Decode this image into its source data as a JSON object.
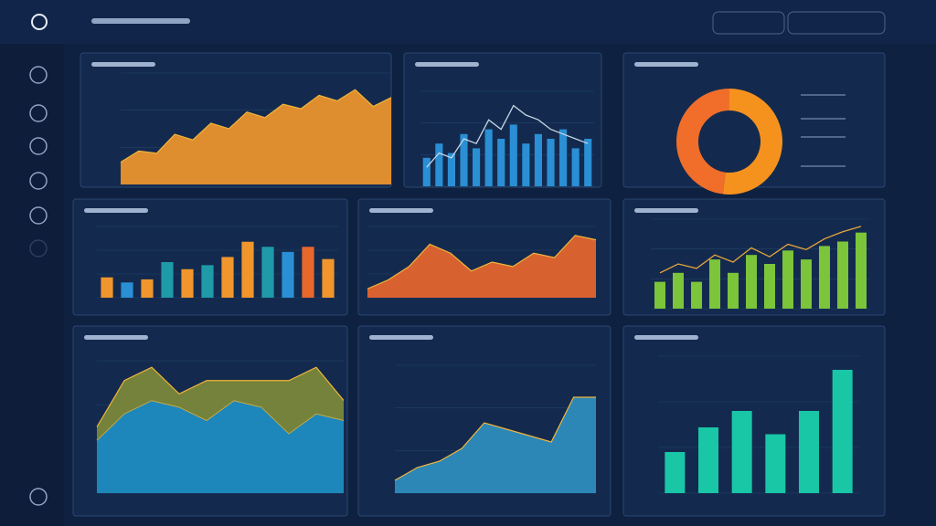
{
  "chart_data": [
    {
      "type": "area",
      "values": [
        20,
        30,
        28,
        45,
        40,
        55,
        50,
        65,
        60,
        72,
        68,
        80,
        75,
        85,
        70,
        78
      ],
      "color": "#f0962c",
      "ylim": [
        0,
        100
      ]
    },
    {
      "type": "bar-line",
      "series": [
        {
          "color": "#2a8fd4",
          "values": [
            30,
            45,
            35,
            55,
            40,
            60,
            50,
            65,
            45,
            55,
            50,
            60,
            40,
            50
          ]
        },
        {
          "color": "#c9d6e6",
          "values": [
            20,
            35,
            30,
            50,
            45,
            70,
            60,
            85,
            75,
            70,
            60,
            55,
            50,
            45
          ]
        }
      ],
      "ylim": [
        0,
        100
      ]
    },
    {
      "type": "donut",
      "values": [
        52,
        48
      ],
      "colors": [
        "#f5921e",
        "#f06e2a"
      ]
    },
    {
      "type": "bar",
      "values": [
        20,
        15,
        18,
        35,
        28,
        32,
        40,
        55,
        50,
        45,
        50,
        38
      ],
      "colors": [
        "#f0962c",
        "#2a8fd4",
        "#f0962c",
        "#1f9aa8",
        "#f0962c",
        "#1f9aa8",
        "#f0962c",
        "#f0962c",
        "#1f9aa8",
        "#2a8fd4",
        "#e8672c",
        "#f0962c"
      ],
      "ylim": [
        0,
        70
      ]
    },
    {
      "type": "area",
      "values": [
        10,
        20,
        35,
        60,
        50,
        30,
        40,
        35,
        50,
        45,
        70,
        65
      ],
      "color": "#e8672c",
      "ylim": [
        0,
        80
      ]
    },
    {
      "type": "bar-line",
      "series": [
        {
          "color": "#7cc43a",
          "values": [
            30,
            40,
            30,
            55,
            40,
            60,
            50,
            65,
            55,
            70,
            75,
            85
          ]
        },
        {
          "color": "#e8a63a",
          "values": [
            40,
            50,
            45,
            60,
            52,
            68,
            58,
            72,
            66,
            78,
            86,
            92
          ]
        }
      ],
      "ylim": [
        0,
        100
      ]
    },
    {
      "type": "stacked-area",
      "series": [
        {
          "color": "#1e8fc4",
          "values": [
            40,
            60,
            70,
            65,
            55,
            70,
            65,
            45,
            60,
            55
          ]
        },
        {
          "color": "#7d8a3a",
          "values": [
            10,
            25,
            25,
            10,
            30,
            15,
            20,
            40,
            35,
            15
          ]
        }
      ],
      "ylim": [
        0,
        100
      ]
    },
    {
      "type": "area",
      "values": [
        10,
        20,
        25,
        35,
        55,
        50,
        45,
        40,
        75,
        75
      ],
      "color": "#2f8fc0",
      "ylim": [
        0,
        100
      ]
    },
    {
      "type": "bar",
      "values": [
        30,
        48,
        60,
        43,
        60,
        90
      ],
      "colors": [
        "#19c6a6",
        "#19c6a6",
        "#19c6a6",
        "#19c6a6",
        "#19c6a6",
        "#19c6a6"
      ],
      "ylim": [
        0,
        100
      ]
    }
  ]
}
